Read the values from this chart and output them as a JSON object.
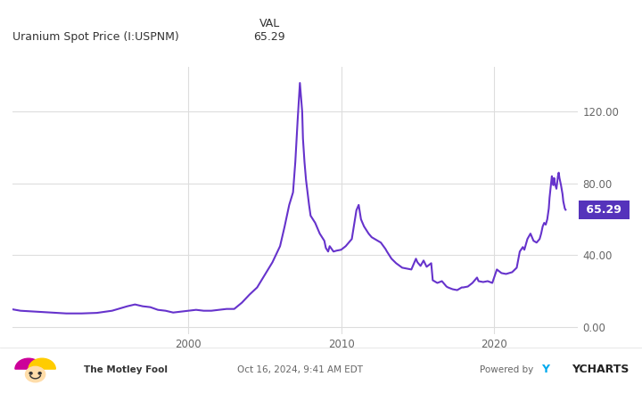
{
  "label_left": "Uranium Spot Price (I:USPNM)",
  "label_val": "VAL",
  "label_price": "65.29",
  "current_price": 65.29,
  "line_color": "#6633cc",
  "label_box_color": "#5533bb",
  "label_text_color": "#ffffff",
  "bg_color": "#ffffff",
  "plot_bg_color": "#ffffff",
  "grid_color": "#dddddd",
  "yticks": [
    0.0,
    40.0,
    80.0,
    120.0
  ],
  "xtick_labels": [
    "2000",
    "2010",
    "2020"
  ],
  "xtick_pos": [
    2000,
    2010,
    2020
  ],
  "footer_date": "Oct 16, 2024, 9:41 AM EDT Powered by ",
  "footer_ycharts": "YCHARTS",
  "footer_y_color": "#00aaee",
  "footer_ycharts_color": "#222222",
  "x_start_year": 1988.5,
  "x_end_year": 2025.5,
  "y_min": -4,
  "y_max": 145,
  "raw_data": [
    [
      1988.0,
      10.5
    ],
    [
      1989.0,
      9.0
    ],
    [
      1990.0,
      8.5
    ],
    [
      1991.0,
      8.0
    ],
    [
      1992.0,
      7.5
    ],
    [
      1993.0,
      7.5
    ],
    [
      1994.0,
      7.8
    ],
    [
      1995.0,
      9.0
    ],
    [
      1996.0,
      11.5
    ],
    [
      1996.5,
      12.5
    ],
    [
      1997.0,
      11.5
    ],
    [
      1997.5,
      11.0
    ],
    [
      1998.0,
      9.5
    ],
    [
      1998.5,
      9.0
    ],
    [
      1999.0,
      8.0
    ],
    [
      1999.5,
      8.5
    ],
    [
      2000.0,
      9.0
    ],
    [
      2000.5,
      9.5
    ],
    [
      2001.0,
      9.0
    ],
    [
      2001.5,
      9.0
    ],
    [
      2002.0,
      9.5
    ],
    [
      2002.5,
      10.0
    ],
    [
      2003.0,
      10.0
    ],
    [
      2003.5,
      13.5
    ],
    [
      2004.0,
      18.0
    ],
    [
      2004.5,
      22.0
    ],
    [
      2005.0,
      29.0
    ],
    [
      2005.5,
      36.0
    ],
    [
      2006.0,
      45.0
    ],
    [
      2006.3,
      56.0
    ],
    [
      2006.6,
      68.0
    ],
    [
      2006.85,
      75.0
    ],
    [
      2007.0,
      92.0
    ],
    [
      2007.15,
      115.0
    ],
    [
      2007.3,
      136.0
    ],
    [
      2007.45,
      120.0
    ],
    [
      2007.5,
      105.0
    ],
    [
      2007.6,
      92.0
    ],
    [
      2007.7,
      82.0
    ],
    [
      2007.9,
      68.0
    ],
    [
      2008.0,
      62.0
    ],
    [
      2008.3,
      58.0
    ],
    [
      2008.6,
      52.0
    ],
    [
      2008.9,
      48.0
    ],
    [
      2009.0,
      44.0
    ],
    [
      2009.15,
      42.0
    ],
    [
      2009.25,
      45.0
    ],
    [
      2009.5,
      42.0
    ],
    [
      2009.7,
      42.5
    ],
    [
      2010.0,
      43.0
    ],
    [
      2010.3,
      45.0
    ],
    [
      2010.7,
      49.0
    ],
    [
      2011.0,
      65.0
    ],
    [
      2011.15,
      68.0
    ],
    [
      2011.3,
      60.0
    ],
    [
      2011.5,
      56.0
    ],
    [
      2011.8,
      52.0
    ],
    [
      2012.0,
      50.0
    ],
    [
      2012.3,
      48.5
    ],
    [
      2012.6,
      47.0
    ],
    [
      2012.9,
      43.5
    ],
    [
      2013.0,
      42.0
    ],
    [
      2013.3,
      38.0
    ],
    [
      2013.6,
      35.5
    ],
    [
      2014.0,
      33.0
    ],
    [
      2014.3,
      32.5
    ],
    [
      2014.6,
      32.0
    ],
    [
      2014.9,
      38.0
    ],
    [
      2015.0,
      36.0
    ],
    [
      2015.2,
      34.0
    ],
    [
      2015.4,
      37.0
    ],
    [
      2015.6,
      33.5
    ],
    [
      2015.9,
      35.5
    ],
    [
      2016.0,
      26.0
    ],
    [
      2016.3,
      24.5
    ],
    [
      2016.6,
      25.5
    ],
    [
      2016.9,
      22.5
    ],
    [
      2017.0,
      22.0
    ],
    [
      2017.3,
      21.0
    ],
    [
      2017.6,
      20.5
    ],
    [
      2017.9,
      22.0
    ],
    [
      2018.0,
      22.0
    ],
    [
      2018.3,
      22.5
    ],
    [
      2018.6,
      24.5
    ],
    [
      2018.9,
      27.5
    ],
    [
      2019.0,
      25.5
    ],
    [
      2019.3,
      25.0
    ],
    [
      2019.6,
      25.5
    ],
    [
      2019.9,
      24.5
    ],
    [
      2020.0,
      27.0
    ],
    [
      2020.2,
      32.0
    ],
    [
      2020.5,
      30.0
    ],
    [
      2020.8,
      29.5
    ],
    [
      2021.0,
      30.0
    ],
    [
      2021.2,
      30.5
    ],
    [
      2021.5,
      33.0
    ],
    [
      2021.7,
      42.0
    ],
    [
      2021.9,
      44.5
    ],
    [
      2022.0,
      43.0
    ],
    [
      2022.2,
      49.0
    ],
    [
      2022.4,
      52.0
    ],
    [
      2022.6,
      48.0
    ],
    [
      2022.8,
      47.0
    ],
    [
      2023.0,
      49.0
    ],
    [
      2023.1,
      52.0
    ],
    [
      2023.2,
      56.0
    ],
    [
      2023.3,
      58.0
    ],
    [
      2023.4,
      57.0
    ],
    [
      2023.5,
      60.0
    ],
    [
      2023.6,
      66.0
    ],
    [
      2023.65,
      72.0
    ],
    [
      2023.7,
      76.0
    ],
    [
      2023.75,
      80.0
    ],
    [
      2023.8,
      84.0
    ],
    [
      2023.85,
      82.0
    ],
    [
      2023.9,
      79.0
    ],
    [
      2023.95,
      83.0
    ],
    [
      2024.0,
      80.0
    ],
    [
      2024.1,
      77.0
    ],
    [
      2024.2,
      84.0
    ],
    [
      2024.25,
      86.0
    ],
    [
      2024.3,
      83.0
    ],
    [
      2024.4,
      79.0
    ],
    [
      2024.5,
      74.0
    ],
    [
      2024.55,
      70.0
    ],
    [
      2024.6,
      68.0
    ],
    [
      2024.65,
      66.0
    ],
    [
      2024.7,
      65.29
    ]
  ]
}
